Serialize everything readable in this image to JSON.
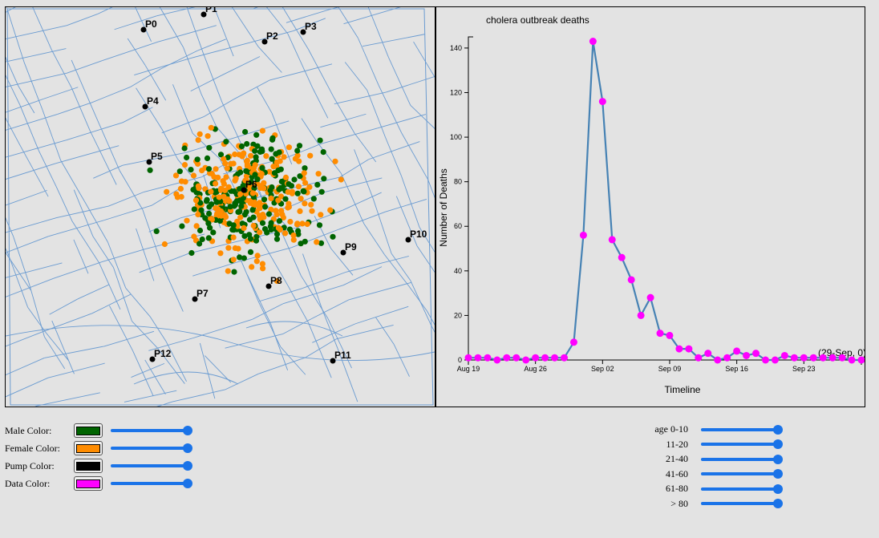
{
  "map": {
    "pumps": [
      {
        "label": "P0"
      },
      {
        "label": "P1"
      },
      {
        "label": "P2"
      },
      {
        "label": "P3"
      },
      {
        "label": "P4"
      },
      {
        "label": "P5"
      },
      {
        "label": "P6"
      },
      {
        "label": "P7"
      },
      {
        "label": "P8"
      },
      {
        "label": "P9"
      },
      {
        "label": "P10"
      },
      {
        "label": "P11"
      },
      {
        "label": "P12"
      }
    ],
    "colors": {
      "male": "#006400",
      "female": "#ff8c00",
      "pump": "#000000",
      "street": "#6a9bd1"
    }
  },
  "chart_data": {
    "type": "line",
    "title": "cholera outbreak deaths",
    "xlabel": "Timeline",
    "ylabel": "Number of Deaths",
    "x_start": "Aug 19",
    "x": [
      "Aug 19",
      "Aug 20",
      "Aug 21",
      "Aug 22",
      "Aug 23",
      "Aug 24",
      "Aug 25",
      "Aug 26",
      "Aug 27",
      "Aug 28",
      "Aug 29",
      "Aug 30",
      "Aug 31",
      "Sep 01",
      "Sep 02",
      "Sep 03",
      "Sep 04",
      "Sep 05",
      "Sep 06",
      "Sep 07",
      "Sep 08",
      "Sep 09",
      "Sep 10",
      "Sep 11",
      "Sep 12",
      "Sep 13",
      "Sep 14",
      "Sep 15",
      "Sep 16",
      "Sep 17",
      "Sep 18",
      "Sep 19",
      "Sep 20",
      "Sep 21",
      "Sep 22",
      "Sep 23",
      "Sep 24",
      "Sep 25",
      "Sep 26",
      "Sep 27",
      "Sep 28",
      "Sep 29"
    ],
    "values": [
      1,
      1,
      1,
      0,
      1,
      1,
      0,
      1,
      1,
      1,
      1,
      8,
      56,
      143,
      116,
      54,
      46,
      36,
      20,
      28,
      12,
      11,
      5,
      5,
      1,
      3,
      0,
      1,
      4,
      2,
      3,
      0,
      0,
      2,
      1,
      1,
      1,
      1,
      1,
      1,
      0,
      0
    ],
    "xticks": [
      "Aug 19",
      "Aug 26",
      "Sep 02",
      "Sep 09",
      "Sep 16",
      "Sep 23"
    ],
    "yticks": [
      0,
      20,
      40,
      60,
      80,
      100,
      120,
      140
    ],
    "ylim": [
      0,
      145
    ],
    "line_color": "#4682b4",
    "point_color": "#ff00ff",
    "annotation": "(29-Sep, 0)"
  },
  "controls": {
    "colors": [
      {
        "label": "Male Color:",
        "color": "#006400"
      },
      {
        "label": "Female Color:",
        "color": "#ff8c00"
      },
      {
        "label": "Pump Color:",
        "color": "#000000"
      },
      {
        "label": "Data Color:",
        "color": "#ff00ff"
      }
    ],
    "age_groups": [
      {
        "label": "age 0-10"
      },
      {
        "label": "11-20"
      },
      {
        "label": "21-40"
      },
      {
        "label": "41-60"
      },
      {
        "label": "61-80"
      },
      {
        "label": "> 80"
      }
    ]
  }
}
